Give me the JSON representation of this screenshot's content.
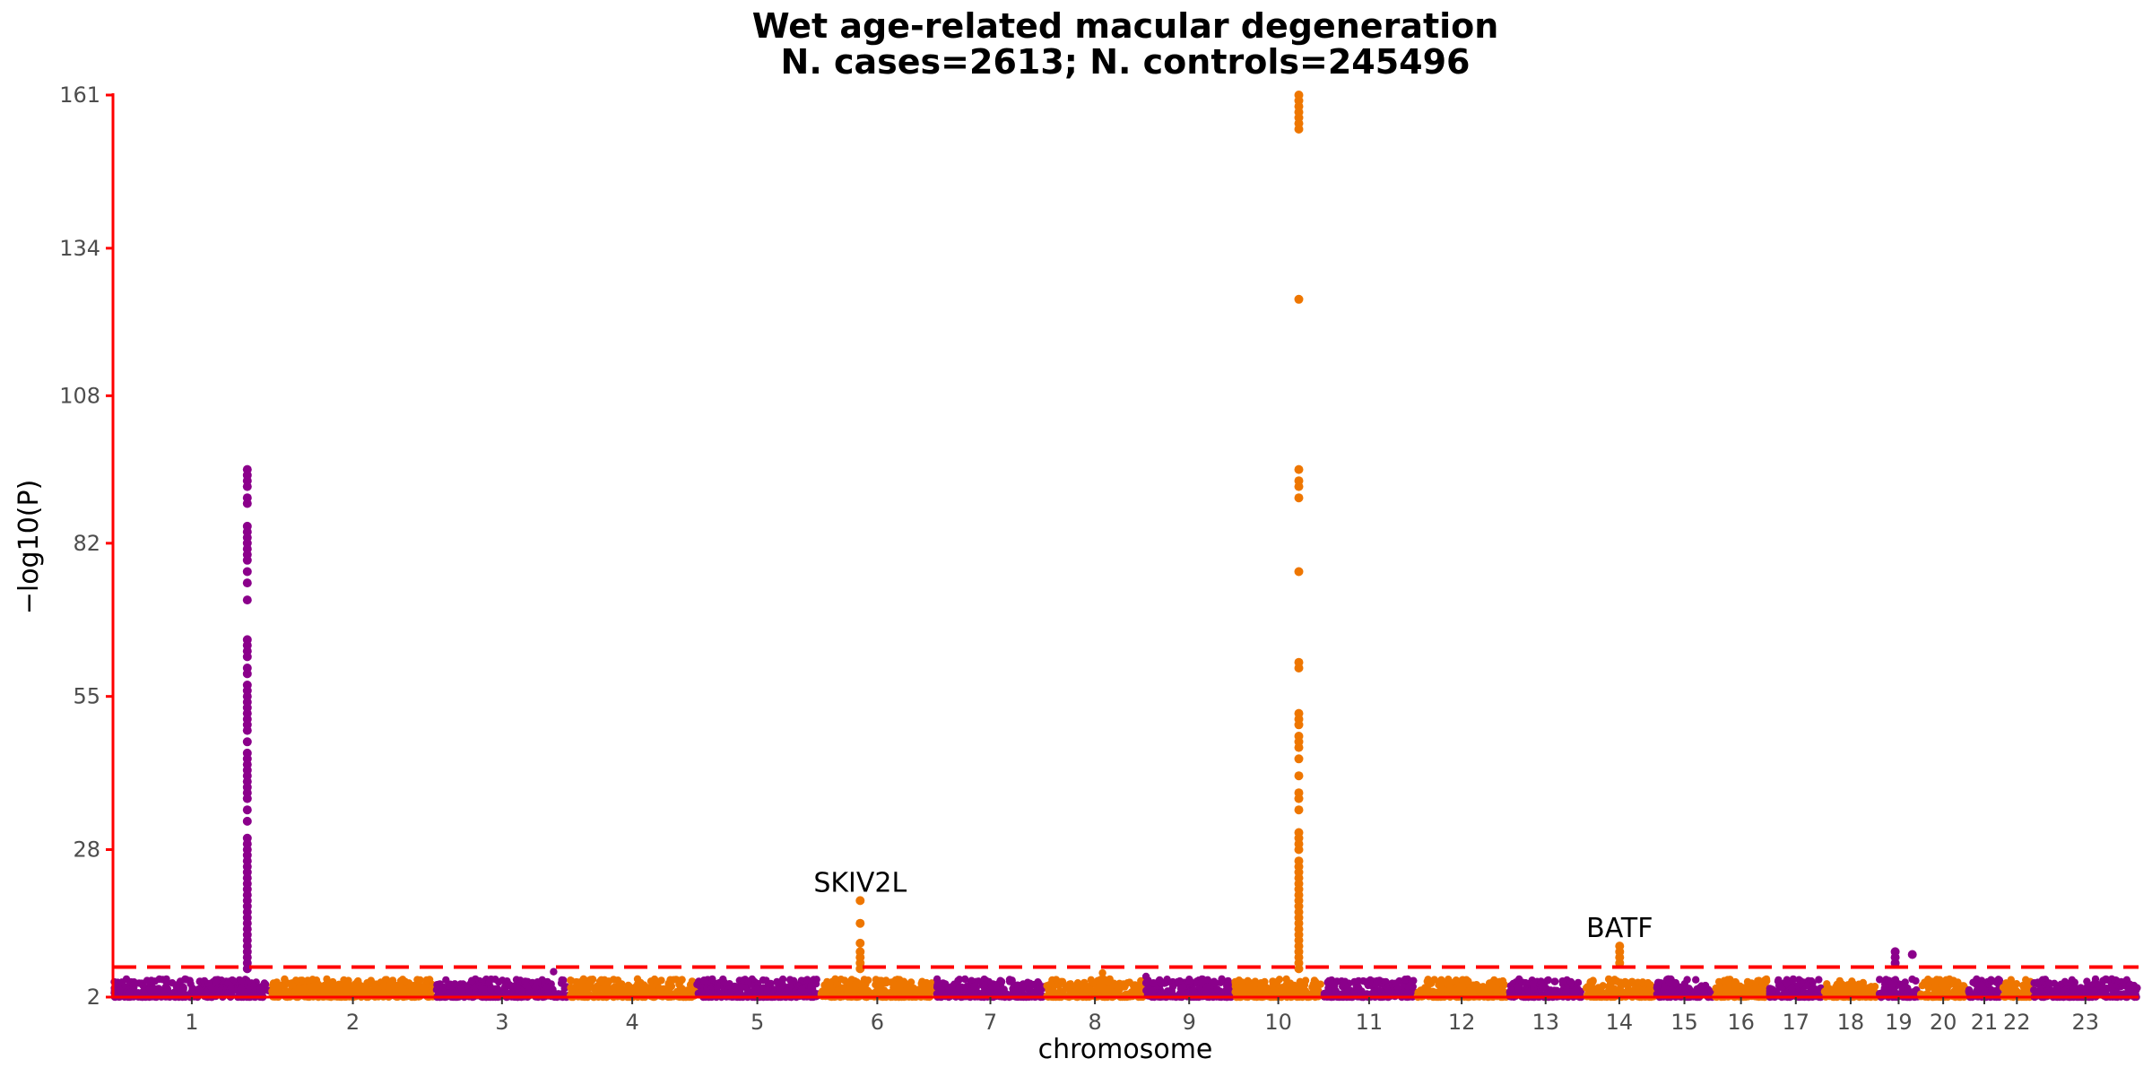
{
  "colors": {
    "odd_chromosome": "#8b008b",
    "even_chromosome": "#ee7600",
    "threshold_line": "#ff0000",
    "axis_line": "#ff0000"
  },
  "chart_data": {
    "type": "scatter",
    "title": "Wet age-related macular degeneration",
    "subtitle": "N. cases=2613; N. controls=245496",
    "xlabel": "chromosome",
    "ylabel": "−log10(P)",
    "ylim": [
      2,
      161
    ],
    "yticks": [
      2,
      28,
      55,
      82,
      108,
      134,
      161
    ],
    "significance_threshold": 7.3,
    "grid": false,
    "legend": "none",
    "chromosomes": [
      {
        "label": "1",
        "start": 0,
        "end": 230
      },
      {
        "label": "2",
        "start": 230,
        "end": 470
      },
      {
        "label": "3",
        "start": 470,
        "end": 665
      },
      {
        "label": "4",
        "start": 665,
        "end": 850
      },
      {
        "label": "5",
        "start": 850,
        "end": 1030
      },
      {
        "label": "6",
        "start": 1030,
        "end": 1200
      },
      {
        "label": "7",
        "start": 1200,
        "end": 1360
      },
      {
        "label": "8",
        "start": 1360,
        "end": 1505
      },
      {
        "label": "9",
        "start": 1505,
        "end": 1635
      },
      {
        "label": "10",
        "start": 1635,
        "end": 1765
      },
      {
        "label": "11",
        "start": 1765,
        "end": 1900
      },
      {
        "label": "12",
        "start": 1900,
        "end": 2035
      },
      {
        "label": "13",
        "start": 2035,
        "end": 2145
      },
      {
        "label": "14",
        "start": 2145,
        "end": 2250
      },
      {
        "label": "15",
        "start": 2250,
        "end": 2335
      },
      {
        "label": "16",
        "start": 2335,
        "end": 2415
      },
      {
        "label": "17",
        "start": 2415,
        "end": 2495
      },
      {
        "label": "18",
        "start": 2495,
        "end": 2575
      },
      {
        "label": "19",
        "start": 2575,
        "end": 2635
      },
      {
        "label": "20",
        "start": 2635,
        "end": 2705
      },
      {
        "label": "21",
        "start": 2705,
        "end": 2755
      },
      {
        "label": "22",
        "start": 2755,
        "end": 2800
      },
      {
        "label": "23",
        "start": 2800,
        "end": 2955
      }
    ],
    "peaks": [
      {
        "chromosome": "1",
        "pos": 196,
        "values": [
          95,
          94,
          93,
          92,
          90,
          89,
          85,
          84,
          83,
          82,
          81,
          80,
          79,
          77,
          75,
          72,
          65,
          64,
          63,
          62,
          60,
          59,
          57,
          56,
          55,
          54,
          53,
          52,
          51,
          50,
          49,
          47,
          45,
          44,
          43,
          42,
          41,
          40,
          39,
          38,
          37,
          35,
          33,
          30,
          29,
          28,
          27,
          26,
          25,
          24,
          23,
          22,
          21,
          20,
          19,
          18,
          17,
          16,
          15,
          14,
          13,
          12,
          11,
          10,
          9,
          8,
          7
        ]
      },
      {
        "chromosome": "6",
        "pos": 1090,
        "values": [
          19,
          15,
          11.5,
          10,
          9,
          8,
          7
        ]
      },
      {
        "chromosome": "10",
        "pos": 1730,
        "values": [
          161,
          160,
          159,
          158,
          157,
          156,
          155,
          125,
          95,
          93,
          92,
          90,
          77,
          61,
          60,
          52,
          51,
          50,
          48,
          47,
          46,
          44,
          41,
          38,
          37,
          35,
          31,
          30,
          29,
          28,
          26,
          25,
          24,
          23,
          22,
          21,
          20,
          19,
          18,
          17,
          16,
          15,
          14,
          13,
          12,
          11,
          10,
          9,
          8,
          7
        ]
      },
      {
        "chromosome": "14",
        "pos": 2198,
        "values": [
          11,
          10,
          9,
          8
        ]
      },
      {
        "chromosome": "19",
        "pos": 2600,
        "values": [
          10,
          9,
          8
        ]
      },
      {
        "chromosome": "19",
        "pos": 2625,
        "values": [
          9.5
        ]
      }
    ],
    "annotations": [
      {
        "label": "SKIV2L",
        "chromosome": "6",
        "pos": 1090,
        "value": 19
      },
      {
        "label": "BATF",
        "chromosome": "14",
        "pos": 2198,
        "value": 11
      }
    ]
  }
}
